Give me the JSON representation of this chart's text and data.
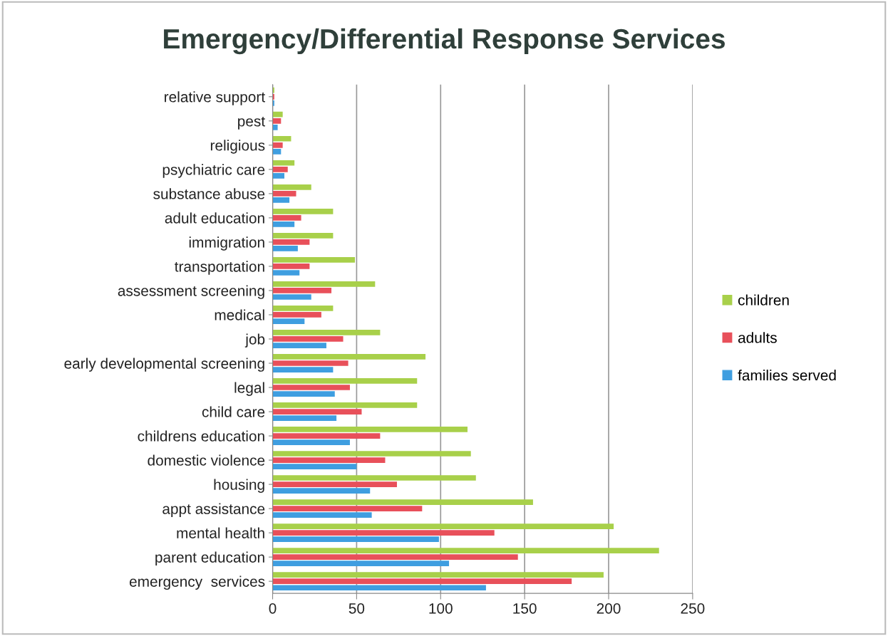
{
  "chart_data": {
    "type": "bar",
    "orientation": "horizontal",
    "title": "Emergency/Differential Response Services",
    "categories": [
      "relative support",
      "pest",
      "religious",
      "psychiatric care",
      "substance abuse",
      "adult education",
      "immigration",
      "transportation",
      "assessment screening",
      "medical",
      "job",
      "early developmental screening",
      "legal",
      "child care",
      "childrens education",
      "domestic violence",
      "housing",
      "appt assistance",
      "mental health",
      "parent education",
      "emergency  services"
    ],
    "series": [
      {
        "name": "children",
        "color": "#a8d04a",
        "values": [
          1,
          6,
          11,
          13,
          23,
          36,
          36,
          49,
          61,
          36,
          64,
          91,
          86,
          86,
          116,
          118,
          121,
          155,
          203,
          230,
          197
        ]
      },
      {
        "name": "adults",
        "color": "#e8505a",
        "values": [
          1,
          5,
          6,
          9,
          14,
          17,
          22,
          22,
          35,
          29,
          42,
          45,
          46,
          53,
          64,
          67,
          74,
          89,
          132,
          146,
          178
        ]
      },
      {
        "name": "families served",
        "color": "#3f9ee0",
        "values": [
          1,
          3,
          5,
          7,
          10,
          13,
          15,
          16,
          23,
          19,
          32,
          36,
          37,
          38,
          46,
          50,
          58,
          59,
          99,
          105,
          127
        ]
      }
    ],
    "xlim": [
      0,
      250
    ],
    "xticks": [
      0,
      50,
      100,
      150,
      200,
      250
    ],
    "grid": "x",
    "legend": "right"
  }
}
